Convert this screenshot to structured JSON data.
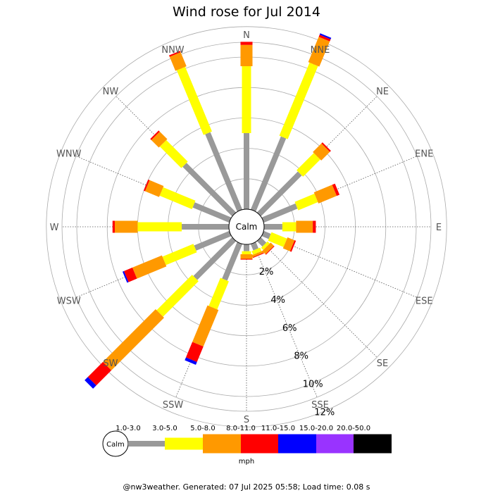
{
  "chart_data": {
    "type": "wind-rose",
    "title": "Wind rose for Jul 2014",
    "directions": [
      "N",
      "NNE",
      "NE",
      "ENE",
      "E",
      "ESE",
      "SE",
      "SSE",
      "S",
      "SSW",
      "SW",
      "WSW",
      "W",
      "WNW",
      "NW",
      "NNW"
    ],
    "ring_labels": [
      "2%",
      "4%",
      "6%",
      "8%",
      "10%",
      "12%"
    ],
    "ring_values": [
      2,
      4,
      6,
      8,
      10,
      12
    ],
    "center_label": "Calm",
    "unit": "mph",
    "speed_bins": [
      {
        "label": "1.0-3.0",
        "color": "#999999"
      },
      {
        "label": "3.0-5.0",
        "color": "#ffff00"
      },
      {
        "label": "5.0-8.0",
        "color": "#ff9900"
      },
      {
        "label": "8.0-11.0",
        "color": "#ff0000"
      },
      {
        "label": "11.0-15.0",
        "color": "#0000ff"
      },
      {
        "label": "15.0-20.0",
        "color": "#9933ff"
      },
      {
        "label": "20.0-50.0",
        "color": "#000000"
      }
    ],
    "series": [
      {
        "direction": "N",
        "cumulative": [
          5.0,
          9.4,
          10.8,
          11.0
        ]
      },
      {
        "direction": "NNE",
        "cumulative": [
          5.2,
          10.4,
          12.2,
          12.35,
          12.45
        ]
      },
      {
        "direction": "NE",
        "cumulative": [
          3.8,
          5.4,
          6.2,
          6.3
        ]
      },
      {
        "direction": "ENE",
        "cumulative": [
          2.4,
          3.8,
          5.1,
          5.3
        ]
      },
      {
        "direction": "E",
        "cumulative": [
          1.2,
          2.1,
          3.2,
          3.4
        ]
      },
      {
        "direction": "ESE",
        "cumulative": [
          0.5,
          1.6,
          2.1,
          2.2
        ]
      },
      {
        "direction": "SE",
        "cumulative": [
          0.5,
          0.7,
          1.0,
          1.05
        ]
      },
      {
        "direction": "SSE",
        "cumulative": [
          0.45,
          0.7,
          0.85,
          0.9
        ]
      },
      {
        "direction": "S",
        "cumulative": [
          0.45,
          0.65,
          0.95,
          1.0
        ]
      },
      {
        "direction": "SSW",
        "cumulative": [
          2.6,
          4.6,
          7.2,
          8.3,
          8.5
        ]
      },
      {
        "direction": "SW",
        "cumulative": [
          3.6,
          6.9,
          11.8,
          13.2,
          13.5
        ]
      },
      {
        "direction": "WSW",
        "cumulative": [
          2.5,
          4.7,
          6.8,
          7.4,
          7.5
        ]
      },
      {
        "direction": "W",
        "cumulative": [
          3.1,
          6.0,
          7.5,
          7.65
        ]
      },
      {
        "direction": "WNW",
        "cumulative": [
          2.6,
          4.9,
          5.9,
          6.0
        ]
      },
      {
        "direction": "NW",
        "cumulative": [
          4.6,
          6.6,
          7.3,
          7.4
        ]
      },
      {
        "direction": "NNW",
        "cumulative": [
          5.5,
          10.1,
          11.1,
          11.2
        ]
      }
    ]
  },
  "footer": "@nw3weather.  Generated: 07 Jul 2025 05:58; Load time: 0.08 s"
}
